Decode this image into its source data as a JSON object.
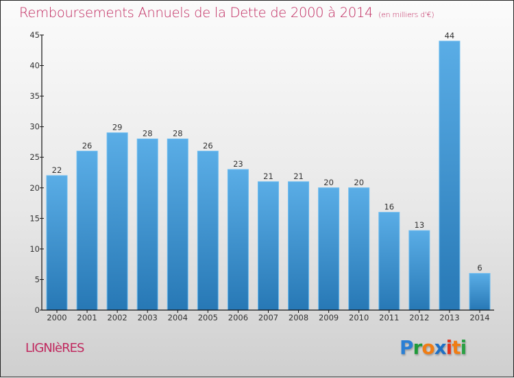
{
  "header": {
    "title": "Remboursements Annuels de la Dette de 2000 à 2014",
    "unit": "(en milliers d'€)"
  },
  "footer": {
    "commune": "LIGNIèRES",
    "logo": {
      "letters": [
        "P",
        "r",
        "o",
        "x",
        "i",
        "t",
        "i"
      ],
      "colors": [
        "#2a7fd4",
        "#1f9a3a",
        "#f07d14",
        "#1e6fc4",
        "#e5331c",
        "#f07d14",
        "#2aa044"
      ]
    }
  },
  "colors": {
    "title": "#c0285e",
    "bar_top": "#5aade6",
    "bar_bottom": "#2778b5",
    "axis": "#111111"
  },
  "chart_data": {
    "type": "bar",
    "title": "Remboursements Annuels de la Dette de 2000 à 2014",
    "subtitle": "(en milliers d'€)",
    "xlabel": "",
    "ylabel": "",
    "categories": [
      "2000",
      "2001",
      "2002",
      "2003",
      "2004",
      "2005",
      "2006",
      "2007",
      "2008",
      "2009",
      "2010",
      "2011",
      "2012",
      "2013",
      "2014"
    ],
    "values": [
      22,
      26,
      29,
      28,
      28,
      26,
      23,
      21,
      21,
      20,
      20,
      16,
      13,
      44,
      6
    ],
    "ylim": [
      0,
      45
    ],
    "yticks": [
      0,
      5,
      10,
      15,
      20,
      25,
      30,
      35,
      40,
      45
    ],
    "grid": false,
    "legend": "none",
    "data_labels": true
  }
}
